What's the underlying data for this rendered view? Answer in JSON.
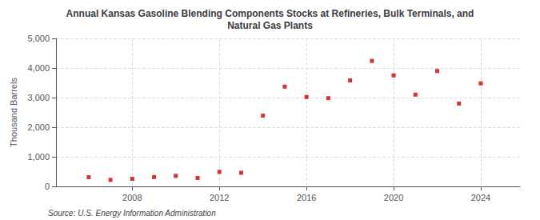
{
  "chart_data": {
    "type": "scatter",
    "title": "Annual Kansas Gasoline Blending Components Stocks at Refineries, Bulk Terminals, and\nNatural Gas Plants",
    "ylabel": "Thousand Barrels",
    "annotations": [
      "Source: U.S. Energy Information Administration"
    ],
    "x": [
      2006,
      2007,
      2008,
      2009,
      2010,
      2011,
      2012,
      2013,
      2014,
      2015,
      2016,
      2017,
      2018,
      2019,
      2020,
      2021,
      2022,
      2023,
      2024
    ],
    "values": [
      310,
      220,
      255,
      315,
      355,
      285,
      490,
      460,
      2390,
      3370,
      3020,
      2980,
      3580,
      4240,
      3750,
      3100,
      3900,
      2800,
      3480
    ],
    "color": "#cc0000",
    "marker": "square",
    "xlim": [
      2004.5,
      2025.8
    ],
    "xticks": [
      2008,
      2012,
      2016,
      2020,
      2024
    ],
    "ylim": [
      0,
      5000
    ],
    "yticks": [
      {
        "value": 0,
        "label": "0"
      },
      {
        "value": 1000,
        "label": "1,000"
      },
      {
        "value": 2000,
        "label": "2,000"
      },
      {
        "value": 3000,
        "label": "3,000"
      },
      {
        "value": 4000,
        "label": "4,000"
      },
      {
        "value": 5000,
        "label": "5,000"
      }
    ],
    "grid": true
  }
}
